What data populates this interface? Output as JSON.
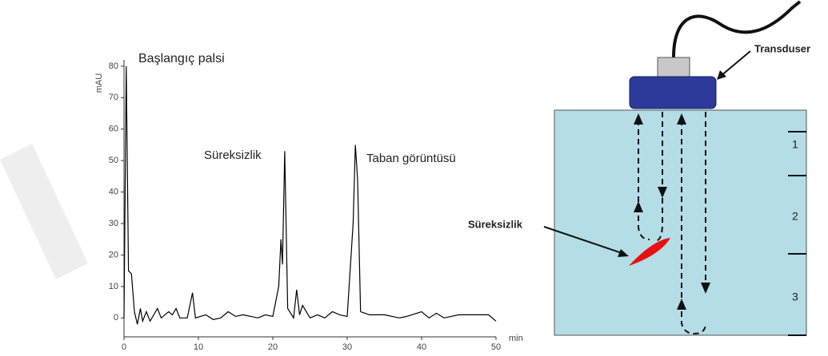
{
  "chart_data": {
    "type": "line",
    "annotations": [
      "Başlangıç palsi",
      "Süreksizlik",
      "Taban görüntüsü"
    ],
    "y_label": "mAU",
    "x_label": "min",
    "x": [
      0,
      0.3,
      0.6,
      1.0,
      1.4,
      1.8,
      2.2,
      2.5,
      3,
      3.5,
      4.5,
      5,
      6,
      6.5,
      7,
      7.5,
      8.5,
      9.2,
      9.6,
      11,
      12,
      13,
      14,
      15,
      16,
      18,
      19,
      20,
      20.8,
      21.1,
      21.3,
      21.6,
      22,
      22.8,
      23.2,
      23.6,
      24,
      25,
      26,
      27,
      28,
      29,
      30,
      30.8,
      31.1,
      31.4,
      31.8,
      33,
      35,
      37,
      38,
      40,
      41,
      42,
      43,
      45,
      47,
      49,
      50
    ],
    "series": [
      {
        "color": "#000000",
        "values": [
          0,
          80,
          15,
          14,
          2,
          -2,
          3,
          -1,
          2,
          -1,
          3,
          0,
          2,
          1,
          3,
          0,
          0,
          8,
          0,
          1,
          -0.5,
          0,
          2,
          0.5,
          1,
          0,
          1,
          0.5,
          10,
          25,
          17,
          53,
          3,
          0,
          9,
          1,
          4,
          0,
          1,
          0,
          2,
          1,
          0.5,
          30,
          55,
          44,
          2,
          1,
          1,
          0,
          0.5,
          2,
          0,
          1.5,
          0,
          1,
          1,
          1,
          -1
        ]
      }
    ],
    "xlim": [
      0,
      50
    ],
    "ylim": [
      -6,
      82
    ],
    "xticks": [
      0,
      10,
      20,
      30,
      40,
      50
    ],
    "yticks": [
      0,
      10,
      20,
      30,
      40,
      50,
      60,
      70,
      80
    ]
  },
  "diagram": {
    "transducer_label": "Transduser",
    "defect_label": "Süreksizlik",
    "zones": [
      "1",
      "2",
      "3"
    ]
  }
}
